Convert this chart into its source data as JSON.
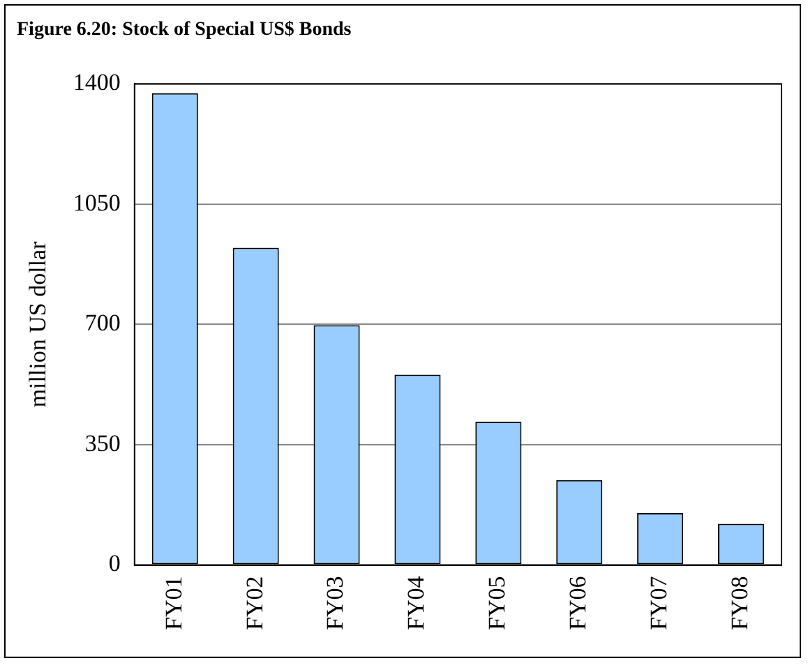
{
  "chart_data": {
    "type": "bar",
    "title": "Figure 6.20: Stock of Special US$ Bonds",
    "ylabel": "million US dollar",
    "categories": [
      "FY01",
      "FY02",
      "FY03",
      "FY04",
      "FY05",
      "FY06",
      "FY07",
      "FY08"
    ],
    "values": [
      1373,
      923,
      698,
      554,
      417,
      247,
      151,
      120
    ],
    "color": "#99ccff",
    "ylim": [
      0,
      1400
    ],
    "yticks": [
      0,
      350,
      700,
      1050,
      1400
    ],
    "grid": "y",
    "legend": false
  }
}
